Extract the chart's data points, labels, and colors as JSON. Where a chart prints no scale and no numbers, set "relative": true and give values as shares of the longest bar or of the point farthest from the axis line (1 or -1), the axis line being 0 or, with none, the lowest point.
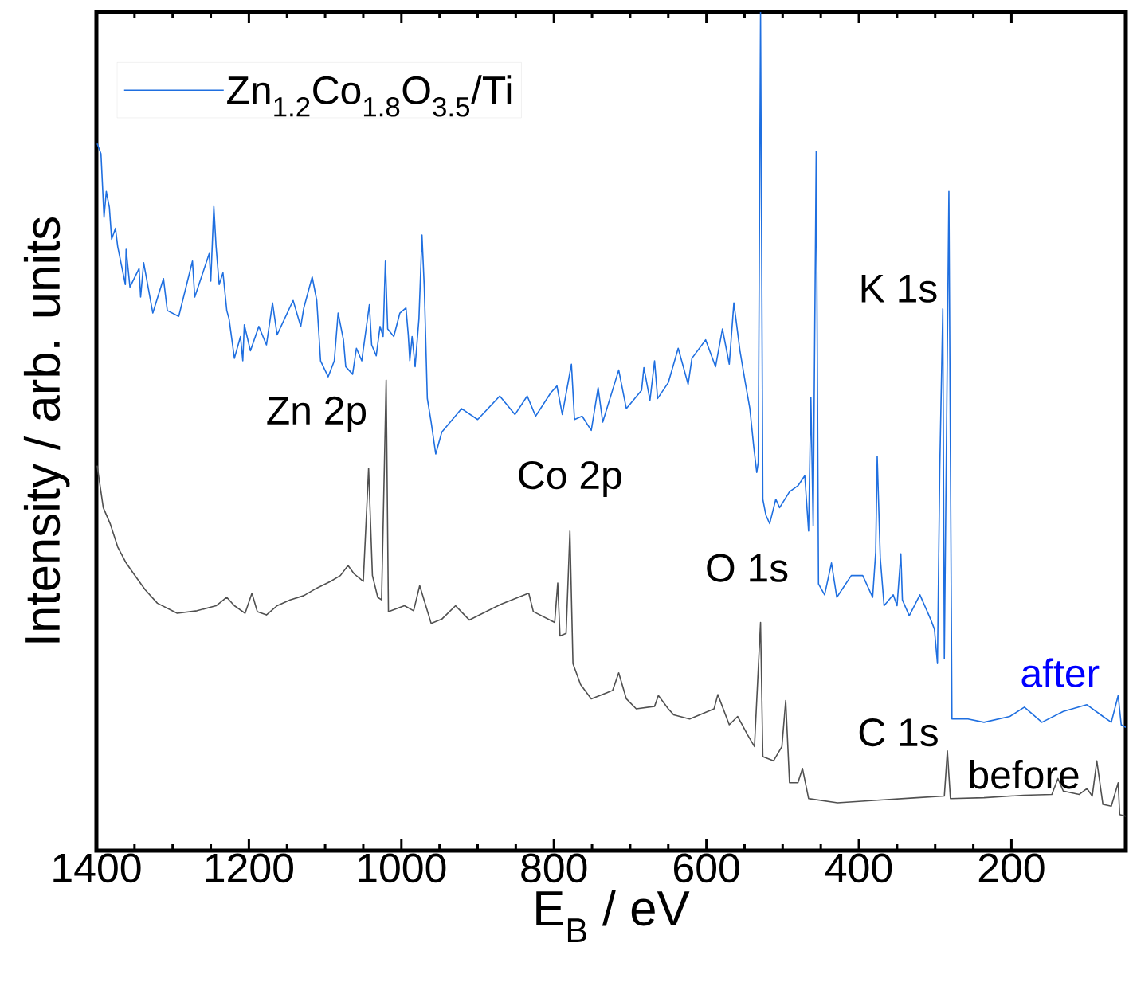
{
  "chart_data": {
    "type": "line",
    "relative": true,
    "xlabel": "E$_{B}$ / eV",
    "ylabel": "Intensity / arb. units",
    "xlim": [
      1400,
      50
    ],
    "xticks": [
      1400,
      1200,
      1000,
      800,
      600,
      400,
      200
    ],
    "legend": "top left",
    "marker": "none",
    "line_style": "solid",
    "series": [
      {
        "name": "Zn$_{1.2}$Co$_{1.8}$O$_{3.5}$/Ti",
        "color": "#1f6fe0",
        "x": [
          1399,
          1394,
          1390,
          1387,
          1383,
          1380,
          1375,
          1372,
          1362,
          1361,
          1356,
          1344,
          1342,
          1338,
          1326,
          1312,
          1307,
          1292,
          1274,
          1271,
          1252,
          1250,
          1246,
          1243,
          1239,
          1234,
          1229,
          1226,
          1219,
          1211,
          1208,
          1206,
          1198,
          1187,
          1177,
          1169,
          1163,
          1142,
          1132,
          1128,
          1117,
          1111,
          1106,
          1096,
          1088,
          1083,
          1076,
          1073,
          1064,
          1059,
          1052,
          1042,
          1039,
          1033,
          1028,
          1024,
          1021,
          1018,
          1010,
          1002,
          994,
          991,
          989,
          986,
          982,
          977,
          973,
          970,
          966,
          961,
          955,
          947,
          921,
          900,
          871,
          851,
          835,
          824,
          804,
          796,
          789,
          777,
          773,
          763,
          751,
          742,
          736,
          715,
          705,
          685,
          682,
          674,
          668,
          664,
          650,
          637,
          624,
          619,
          601,
          588,
          579,
          570,
          564,
          556,
          549,
          543,
          538,
          534,
          532,
          529,
          526,
          522,
          517,
          509,
          504,
          491,
          480,
          471,
          466,
          463,
          460,
          456,
          453,
          445,
          436,
          429,
          410,
          395,
          382,
          378,
          376,
          372,
          367,
          355,
          350,
          345,
          343,
          334,
          320,
          306,
          301,
          297,
          294,
          290,
          288,
          282,
          278,
          257,
          236,
          202,
          183,
          160,
          132,
          101,
          80,
          69,
          60,
          56,
          50
        ],
        "values": [
          0.843,
          0.831,
          0.755,
          0.786,
          0.767,
          0.729,
          0.742,
          0.72,
          0.675,
          0.717,
          0.672,
          0.694,
          0.66,
          0.701,
          0.641,
          0.682,
          0.644,
          0.637,
          0.703,
          0.66,
          0.712,
          0.679,
          0.768,
          0.72,
          0.675,
          0.689,
          0.644,
          0.634,
          0.587,
          0.613,
          0.584,
          0.627,
          0.596,
          0.625,
          0.603,
          0.653,
          0.615,
          0.656,
          0.625,
          0.647,
          0.684,
          0.656,
          0.584,
          0.565,
          0.584,
          0.641,
          0.609,
          0.577,
          0.568,
          0.599,
          0.584,
          0.651,
          0.603,
          0.59,
          0.625,
          0.613,
          0.703,
          0.622,
          0.613,
          0.641,
          0.647,
          0.615,
          0.584,
          0.613,
          0.577,
          0.634,
          0.734,
          0.672,
          0.539,
          0.511,
          0.473,
          0.499,
          0.527,
          0.514,
          0.542,
          0.52,
          0.542,
          0.518,
          0.546,
          0.554,
          0.52,
          0.58,
          0.514,
          0.518,
          0.501,
          0.552,
          0.511,
          0.573,
          0.527,
          0.549,
          0.576,
          0.537,
          0.584,
          0.539,
          0.558,
          0.599,
          0.556,
          0.587,
          0.609,
          0.577,
          0.622,
          0.58,
          0.653,
          0.596,
          0.558,
          0.527,
          0.482,
          0.451,
          0.463,
          1.0,
          0.419,
          0.4,
          0.39,
          0.419,
          0.409,
          0.428,
          0.435,
          0.447,
          0.381,
          0.54,
          0.387,
          0.834,
          0.318,
          0.305,
          0.343,
          0.302,
          0.328,
          0.328,
          0.302,
          0.356,
          0.47,
          0.349,
          0.292,
          0.305,
          0.292,
          0.354,
          0.299,
          0.28,
          0.305,
          0.276,
          0.264,
          0.223,
          0.454,
          0.646,
          0.229,
          0.786,
          0.157,
          0.157,
          0.153,
          0.16,
          0.171,
          0.153,
          0.166,
          0.174,
          0.16,
          0.153,
          0.185,
          0.15,
          0.147
        ]
      },
      {
        "color": "#505050",
        "x": [
          1399,
          1391,
          1382,
          1372,
          1361,
          1351,
          1336,
          1320,
          1294,
          1268,
          1243,
          1229,
          1219,
          1205,
          1196,
          1189,
          1177,
          1163,
          1146,
          1128,
          1111,
          1093,
          1080,
          1070,
          1062,
          1050,
          1043,
          1038,
          1031,
          1026,
          1020,
          1017,
          996,
          984,
          976,
          961,
          947,
          929,
          911,
          869,
          833,
          827,
          799,
          795,
          792,
          784,
          779,
          775,
          765,
          751,
          723,
          715,
          705,
          692,
          668,
          663,
          650,
          643,
          622,
          590,
          585,
          570,
          559,
          546,
          537,
          529,
          526,
          512,
          501,
          496,
          491,
          480,
          474,
          466,
          428,
          376,
          324,
          288,
          284,
          280,
          236,
          184,
          147,
          139,
          132,
          111,
          101,
          94,
          88,
          80,
          69,
          60,
          58,
          50
        ],
        "values": [
          0.459,
          0.409,
          0.39,
          0.362,
          0.343,
          0.33,
          0.311,
          0.295,
          0.283,
          0.286,
          0.292,
          0.302,
          0.292,
          0.283,
          0.307,
          0.285,
          0.281,
          0.292,
          0.299,
          0.304,
          0.313,
          0.321,
          0.328,
          0.34,
          0.33,
          0.321,
          0.456,
          0.328,
          0.302,
          0.299,
          0.561,
          0.285,
          0.292,
          0.286,
          0.316,
          0.271,
          0.276,
          0.292,
          0.275,
          0.294,
          0.307,
          0.285,
          0.272,
          0.319,
          0.256,
          0.259,
          0.381,
          0.223,
          0.198,
          0.181,
          0.191,
          0.212,
          0.181,
          0.169,
          0.172,
          0.185,
          0.169,
          0.162,
          0.157,
          0.169,
          0.186,
          0.15,
          0.16,
          0.138,
          0.124,
          0.272,
          0.112,
          0.107,
          0.124,
          0.179,
          0.081,
          0.081,
          0.098,
          0.062,
          0.057,
          0.06,
          0.063,
          0.065,
          0.119,
          0.062,
          0.063,
          0.066,
          0.067,
          0.086,
          0.071,
          0.067,
          0.074,
          0.065,
          0.107,
          0.055,
          0.053,
          0.081,
          0.043,
          0.041
        ]
      }
    ],
    "annotations": [
      "Zn 2p",
      "Co 2p",
      "O 1s",
      "K 1s",
      "C 1s",
      "after",
      "before"
    ]
  }
}
